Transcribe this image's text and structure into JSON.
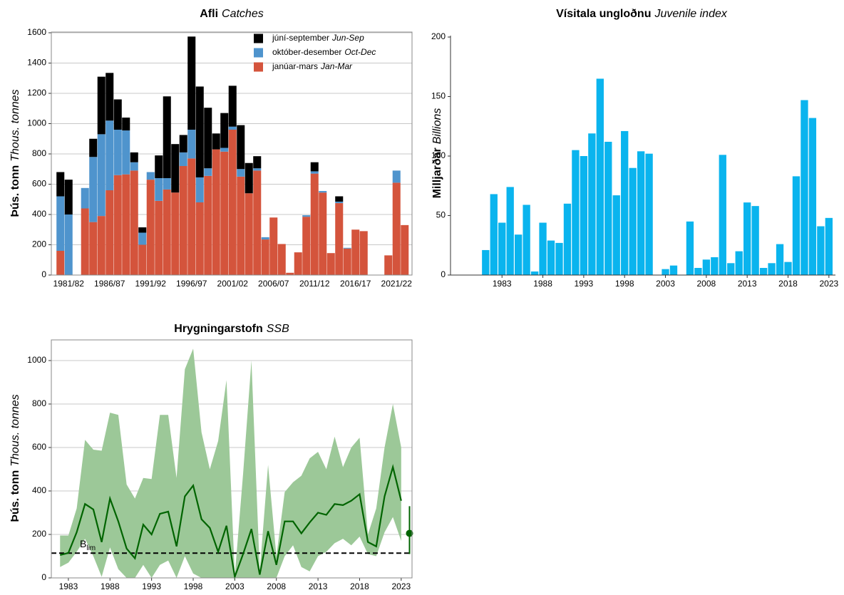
{
  "chart_data": [
    {
      "type": "bar",
      "stacked": true,
      "title": [
        "Afli",
        "Catches"
      ],
      "ylabel": [
        "Þús. tonn",
        "Thous. tonnes"
      ],
      "categories": [
        null,
        "1981/82",
        null,
        null,
        null,
        null,
        "1986/87",
        null,
        null,
        null,
        null,
        "1991/92",
        null,
        null,
        null,
        null,
        "1996/97",
        null,
        null,
        null,
        null,
        "2001/02",
        null,
        null,
        null,
        null,
        "2006/07",
        null,
        null,
        null,
        null,
        "2011/12",
        null,
        null,
        null,
        null,
        "2016/17",
        null,
        null,
        null,
        null,
        "2021/22",
        null
      ],
      "series": [
        {
          "name": "janúar-mars",
          "label_en": "Jan-Mar",
          "color": "#d4543c",
          "values": [
            160,
            0,
            0,
            440,
            350,
            390,
            560,
            660,
            665,
            690,
            200,
            630,
            490,
            565,
            545,
            720,
            770,
            480,
            655,
            830,
            815,
            960,
            650,
            540,
            690,
            235,
            380,
            205,
            15,
            150,
            385,
            670,
            545,
            145,
            475,
            175,
            300,
            290,
            0,
            0,
            130,
            610,
            330
          ]
        },
        {
          "name": "október-desember",
          "label_en": "Oct-Dec",
          "color": "#4f94cd",
          "values": [
            360,
            400,
            0,
            135,
            430,
            540,
            460,
            300,
            290,
            55,
            80,
            50,
            150,
            75,
            0,
            90,
            190,
            165,
            50,
            0,
            25,
            20,
            50,
            0,
            15,
            15,
            0,
            0,
            0,
            0,
            10,
            15,
            10,
            0,
            10,
            5,
            0,
            0,
            0,
            0,
            0,
            80,
            0
          ]
        },
        {
          "name": "júní-september",
          "label_en": "Jun-Sep",
          "color": "#000000",
          "values": [
            160,
            230,
            0,
            0,
            120,
            380,
            315,
            200,
            85,
            65,
            35,
            0,
            150,
            540,
            320,
            115,
            615,
            600,
            400,
            105,
            230,
            270,
            290,
            200,
            80,
            0,
            0,
            0,
            0,
            0,
            0,
            60,
            0,
            0,
            35,
            0,
            0,
            0,
            0,
            0,
            0,
            0,
            0
          ]
        }
      ],
      "ylim": [
        0,
        1600
      ],
      "yticks": [
        0,
        200,
        400,
        600,
        800,
        1000,
        1200,
        1400,
        1600
      ],
      "grid": true,
      "legend": "upper right"
    },
    {
      "type": "bar",
      "title": [
        "Vísitala ungloðnu",
        "Juvenile index"
      ],
      "ylabel": [
        "Milljarðar",
        "Billions"
      ],
      "x": [
        1981,
        1982,
        1983,
        1984,
        1985,
        1986,
        1987,
        1988,
        1989,
        1990,
        1991,
        1992,
        1993,
        1994,
        1995,
        1996,
        1997,
        1998,
        1999,
        2000,
        2001,
        2002,
        2003,
        2004,
        2005,
        2006,
        2007,
        2008,
        2009,
        2010,
        2011,
        2012,
        2013,
        2014,
        2015,
        2016,
        2017,
        2018,
        2019,
        2020,
        2021,
        2022,
        2023
      ],
      "values": [
        21,
        68,
        44,
        74,
        34,
        59,
        3,
        44,
        29,
        27,
        60,
        105,
        100,
        119,
        165,
        112,
        67,
        121,
        90,
        104,
        102,
        0,
        5,
        8,
        0,
        45,
        6,
        13,
        15,
        101,
        10,
        20,
        61,
        58,
        6,
        10,
        26,
        11,
        83,
        147,
        132,
        41,
        48
      ],
      "color": "#0ab4ee",
      "xlim": [
        1976.7,
        2023.8
      ],
      "xticks": [
        1983,
        1988,
        1993,
        1998,
        2003,
        2008,
        2013,
        2018,
        2023
      ],
      "ylim": [
        0,
        200
      ],
      "yticks": [
        0,
        50,
        100,
        150,
        200
      ],
      "grid": false
    },
    {
      "type": "line",
      "title": [
        "Hrygningarstofn",
        "SSB"
      ],
      "ylabel": [
        "Þús. tonn",
        "Thous. tonnes"
      ],
      "x": [
        1982,
        1983,
        1984,
        1985,
        1986,
        1987,
        1988,
        1989,
        1990,
        1991,
        1992,
        1993,
        1994,
        1995,
        1996,
        1997,
        1998,
        1999,
        2000,
        2001,
        2002,
        2003,
        2004,
        2005,
        2006,
        2007,
        2008,
        2009,
        2010,
        2011,
        2012,
        2013,
        2014,
        2015,
        2016,
        2017,
        2018,
        2019,
        2020,
        2021,
        2022,
        2023
      ],
      "values": [
        105,
        115,
        210,
        340,
        315,
        165,
        365,
        260,
        135,
        90,
        245,
        200,
        295,
        305,
        145,
        375,
        425,
        270,
        230,
        120,
        240,
        5,
        110,
        225,
        15,
        215,
        60,
        260,
        260,
        205,
        255,
        300,
        290,
        340,
        335,
        355,
        385,
        165,
        145,
        375,
        510,
        355
      ],
      "band": {
        "lower": [
          50,
          70,
          120,
          180,
          100,
          5,
          140,
          40,
          0,
          0,
          60,
          0,
          60,
          80,
          0,
          100,
          20,
          0,
          0,
          0,
          0,
          0,
          0,
          0,
          0,
          0,
          0,
          100,
          150,
          50,
          30,
          100,
          120,
          160,
          180,
          150,
          190,
          110,
          100,
          210,
          280,
          170
        ],
        "upper": [
          195,
          195,
          320,
          635,
          590,
          585,
          760,
          750,
          430,
          365,
          460,
          455,
          750,
          750,
          460,
          960,
          1055,
          670,
          500,
          630,
          910,
          10,
          480,
          1000,
          30,
          520,
          100,
          395,
          440,
          470,
          550,
          580,
          500,
          650,
          510,
          600,
          645,
          200,
          320,
          600,
          800,
          600
        ]
      },
      "color": "#006400",
      "band_color": "#9cc898",
      "reference": {
        "label": [
          "B",
          "lim"
        ],
        "value": 114
      },
      "forecast": {
        "x": 2024,
        "value": 205,
        "low": 110,
        "high": 330
      },
      "xlim": [
        1980.95,
        2024.3
      ],
      "xticks": [
        1983,
        1988,
        1993,
        1998,
        2003,
        2008,
        2013,
        2018,
        2023
      ],
      "ylim": [
        0,
        1095
      ],
      "yticks": [
        0,
        200,
        400,
        600,
        800,
        1000
      ],
      "grid": true
    }
  ]
}
